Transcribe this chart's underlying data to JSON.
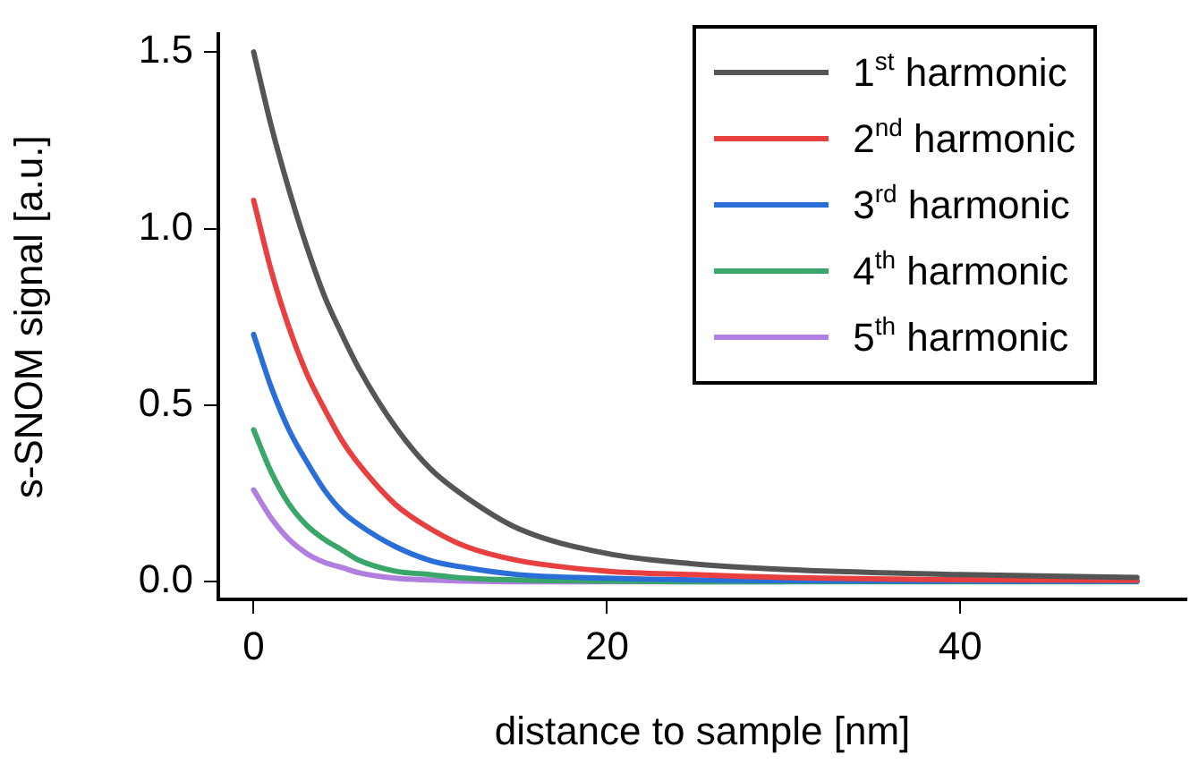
{
  "chart_data": {
    "type": "line",
    "xlabel": "distance to sample [nm]",
    "ylabel": "s-SNOM signal [a.u.]",
    "x": [
      0,
      1,
      2,
      3,
      4,
      5,
      6,
      8,
      10,
      12,
      15,
      20,
      25,
      30,
      40,
      50
    ],
    "xlim": [
      -2,
      52.8
    ],
    "xticks": [
      0,
      20,
      40
    ],
    "ylim": [
      -0.05,
      1.55
    ],
    "yticks": [
      {
        "value": 0,
        "label": "0.0"
      },
      {
        "value": 0.5,
        "label": "0.5"
      },
      {
        "value": 1,
        "label": "1.0"
      },
      {
        "value": 1.5,
        "label": "1.5"
      }
    ],
    "grid": false,
    "legend": "top right",
    "marker": "none",
    "line_style": "solid",
    "series": [
      {
        "name": "1$^{st}$ harmonic",
        "color": "#555555",
        "values": [
          1.5,
          1.29,
          1.11,
          0.95,
          0.81,
          0.7,
          0.6,
          0.44,
          0.32,
          0.24,
          0.15,
          0.08,
          0.05,
          0.035,
          0.02,
          0.012
        ]
      },
      {
        "name": "2$^{nd}$ harmonic",
        "color": "#e84040",
        "values": [
          1.08,
          0.88,
          0.72,
          0.59,
          0.49,
          0.4,
          0.33,
          0.22,
          0.15,
          0.1,
          0.06,
          0.03,
          0.02,
          0.012,
          0.006,
          0.004
        ]
      },
      {
        "name": "3$^{rd}$ harmonic",
        "color": "#2a6fd8",
        "values": [
          0.7,
          0.55,
          0.43,
          0.34,
          0.26,
          0.2,
          0.16,
          0.1,
          0.06,
          0.04,
          0.02,
          0.01,
          0.005,
          0.003,
          0.002,
          0.001
        ]
      },
      {
        "name": "4$^{th}$ harmonic",
        "color": "#3aa66a",
        "values": [
          0.43,
          0.31,
          0.22,
          0.16,
          0.12,
          0.09,
          0.06,
          0.03,
          0.02,
          0.01,
          0.005,
          0.002,
          0,
          0,
          0,
          0
        ]
      },
      {
        "name": "5$^{th}$ harmonic",
        "color": "#b07fe0",
        "values": [
          0.26,
          0.18,
          0.12,
          0.08,
          0.055,
          0.04,
          0.025,
          0.01,
          0.005,
          0.002,
          0,
          0,
          0,
          0,
          null,
          null
        ]
      }
    ]
  }
}
